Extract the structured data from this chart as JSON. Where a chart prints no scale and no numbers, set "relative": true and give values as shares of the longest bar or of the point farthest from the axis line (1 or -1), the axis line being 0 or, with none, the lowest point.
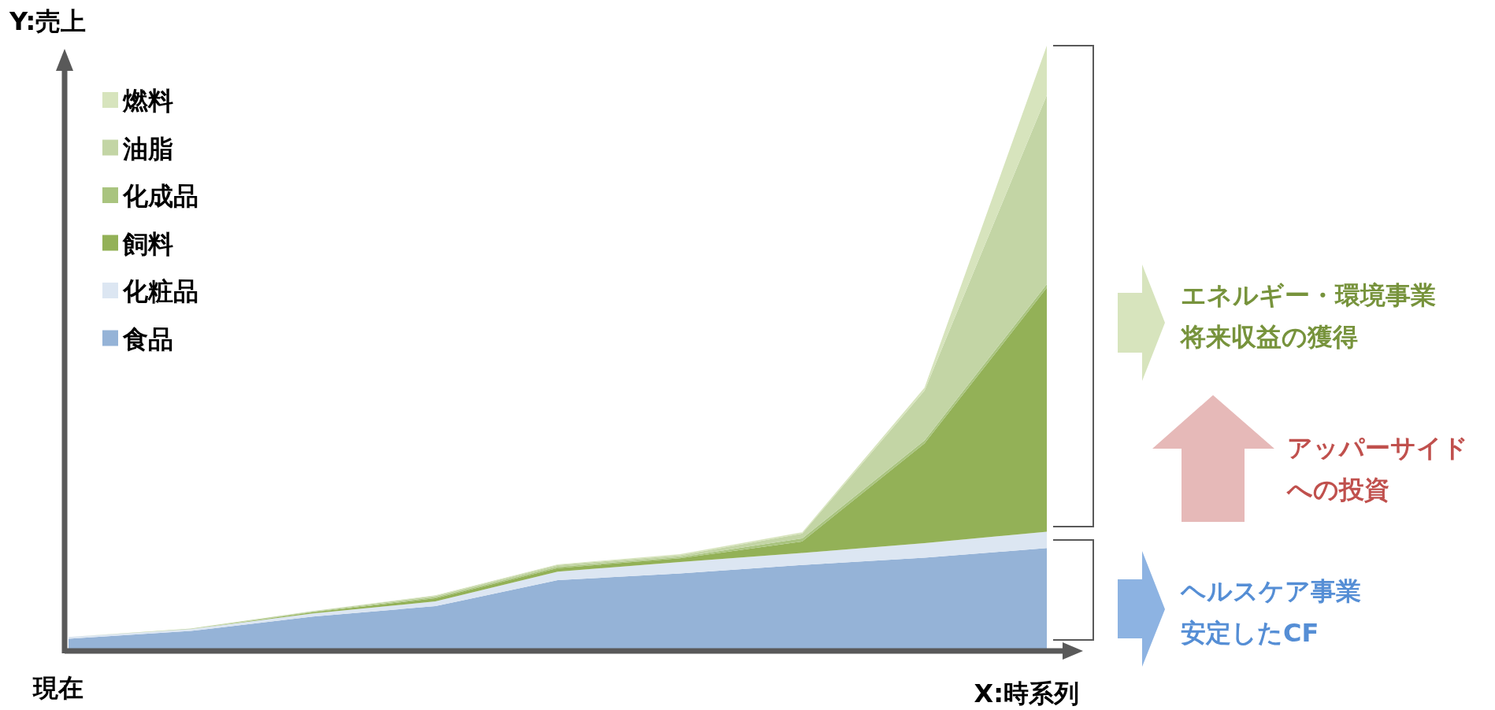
{
  "chart_data": {
    "type": "area",
    "stacked": true,
    "relative": true,
    "legend": "top left",
    "xlabel": "X:時系列",
    "ylabel": "Y:売上",
    "categories": [
      null,
      null,
      null,
      null,
      null,
      null,
      null,
      null,
      null
    ],
    "series": [
      {
        "name": "食品",
        "color": "#95b3d7",
        "values": [
          0.02,
          0.033,
          0.057,
          0.074,
          0.117,
          0.128,
          0.142,
          0.154,
          0.17
        ]
      },
      {
        "name": "化粧品",
        "color": "#dce6f2",
        "values": [
          0.003,
          0.003,
          0.005,
          0.008,
          0.014,
          0.019,
          0.02,
          0.024,
          0.027
        ]
      },
      {
        "name": "飼料",
        "color": "#93b157",
        "values": [
          0,
          0,
          0.002,
          0.005,
          0.006,
          0.006,
          0.019,
          0.165,
          0.403
        ]
      },
      {
        "name": "化成品",
        "color": "#a9c47f",
        "values": [
          0,
          0,
          0.001,
          0.002,
          0.002,
          0.002,
          0.005,
          0.005,
          0.006
        ]
      },
      {
        "name": "油脂",
        "color": "#c3d5a5",
        "values": [
          0,
          0.001,
          0.001,
          0.002,
          0.003,
          0.003,
          0.008,
          0.082,
          0.312
        ]
      },
      {
        "name": "燃料",
        "color": "#d7e4bd",
        "values": [
          0,
          0,
          0,
          0.001,
          0.001,
          0.002,
          0.002,
          0.005,
          0.082
        ]
      }
    ],
    "annotations": [
      "現在",
      "エネルギー・環境事業",
      "将来収益の獲得",
      "アッパーサイド",
      "への投資",
      "ヘルスケア事業",
      "安定したCF"
    ]
  }
}
